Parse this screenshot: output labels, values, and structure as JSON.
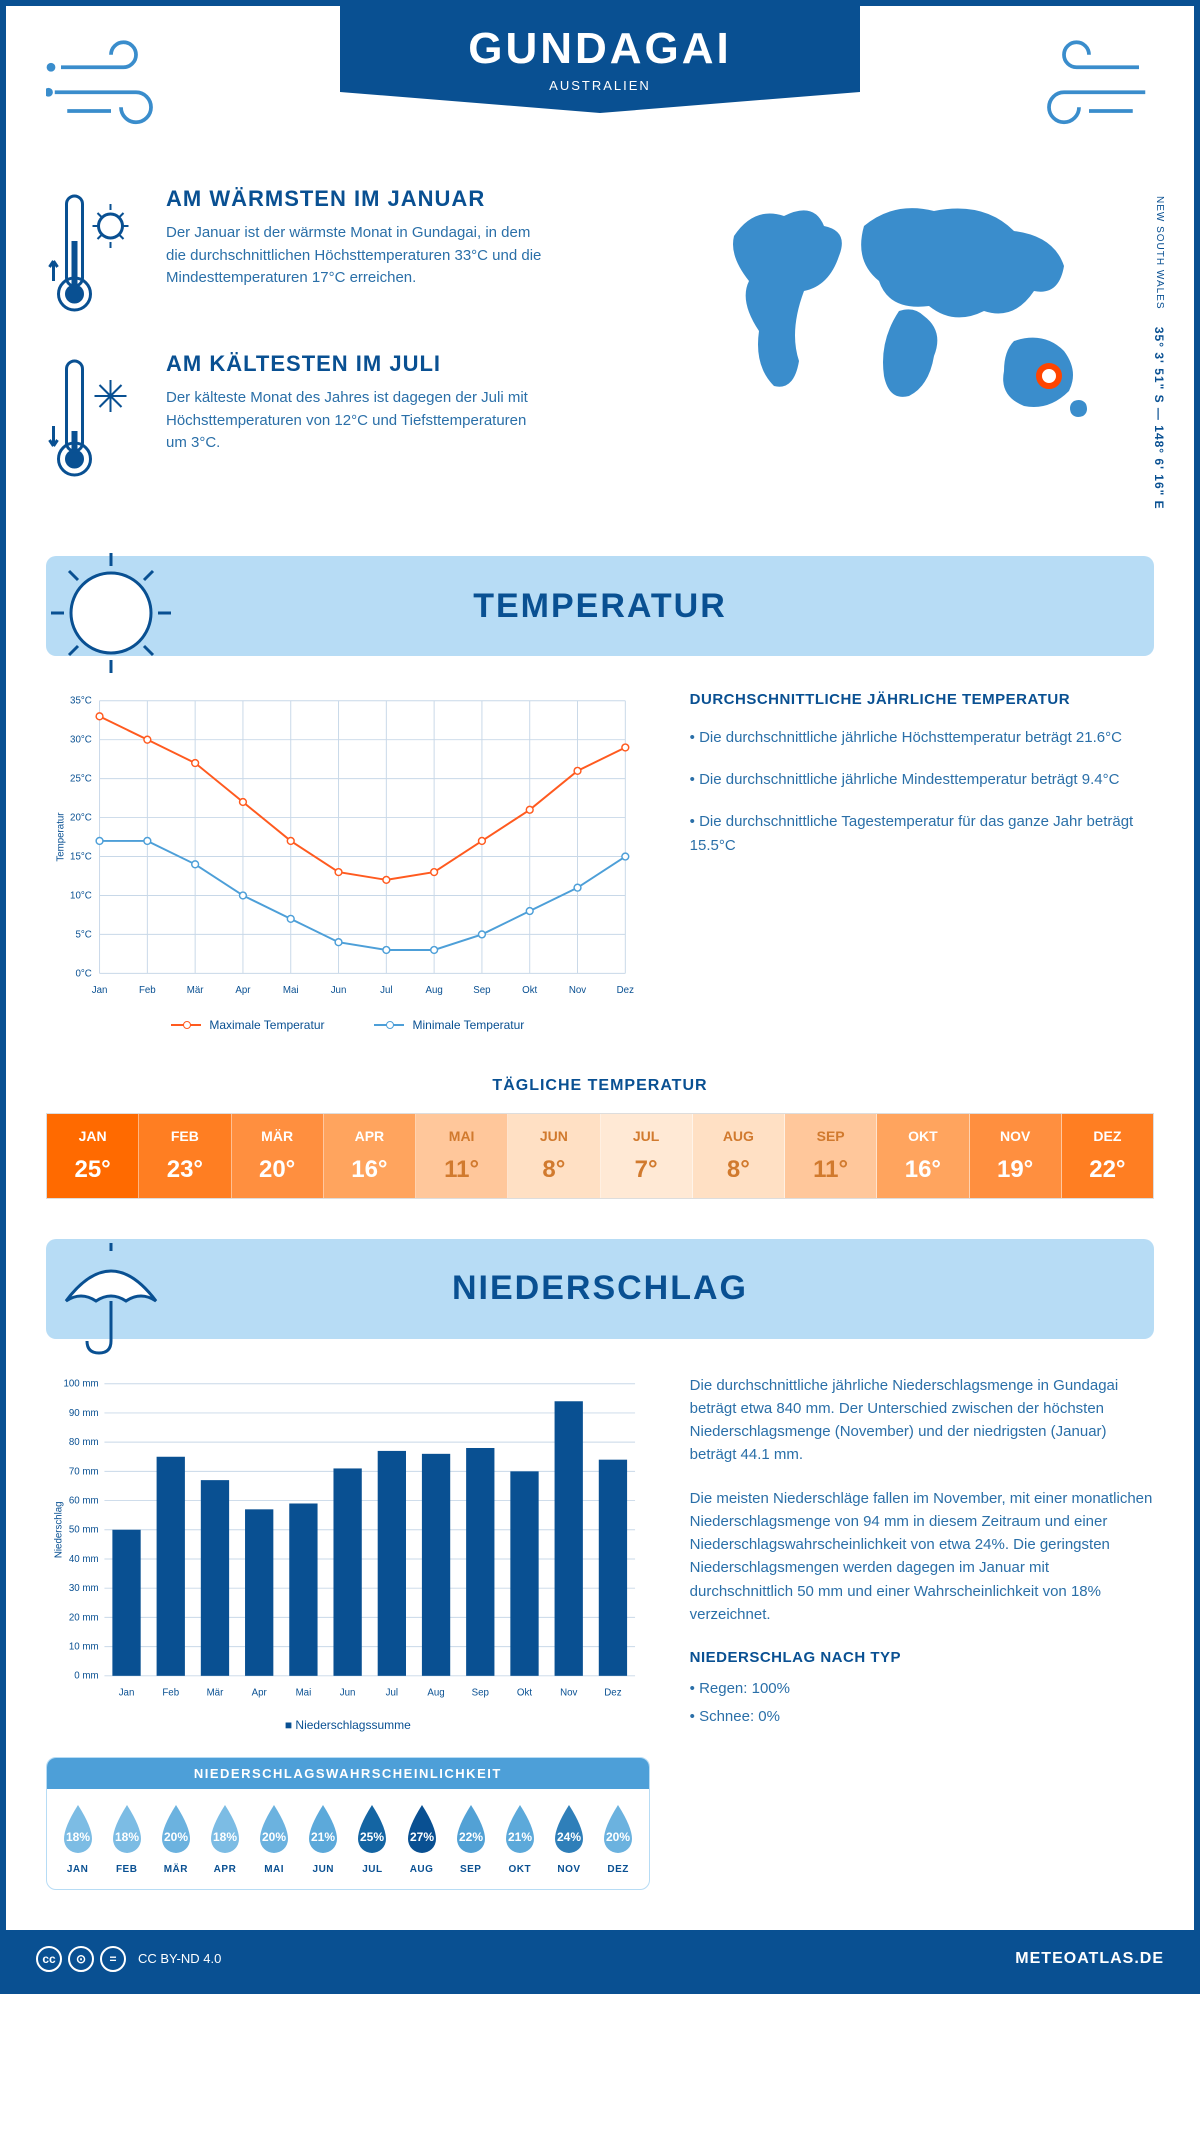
{
  "header": {
    "city": "GUNDAGAI",
    "country": "AUSTRALIEN"
  },
  "coords": {
    "lat": "35° 3' 51\" S",
    "lon": "148° 6' 16\" E",
    "region": "NEW SOUTH WALES"
  },
  "location_marker": {
    "left_pct": 83,
    "top_pct": 76
  },
  "facts": {
    "warm": {
      "title": "AM WÄRMSTEN IM JANUAR",
      "text": "Der Januar ist der wärmste Monat in Gundagai, in dem die durchschnittlichen Höchsttemperaturen 33°C und die Mindesttemperaturen 17°C erreichen."
    },
    "cold": {
      "title": "AM KÄLTESTEN IM JULI",
      "text": "Der kälteste Monat des Jahres ist dagegen der Juli mit Höchsttemperaturen von 12°C und Tiefsttemperaturen um 3°C."
    }
  },
  "sections": {
    "temp": "TEMPERATUR",
    "precip": "NIEDERSCHLAG"
  },
  "temp_chart": {
    "months": [
      "Jan",
      "Feb",
      "Mär",
      "Apr",
      "Mai",
      "Jun",
      "Jul",
      "Aug",
      "Sep",
      "Okt",
      "Nov",
      "Dez"
    ],
    "max": [
      33,
      30,
      27,
      22,
      17,
      13,
      12,
      13,
      17,
      21,
      26,
      29
    ],
    "min": [
      17,
      17,
      14,
      10,
      7,
      4,
      3,
      3,
      5,
      8,
      11,
      15
    ],
    "ylim": [
      0,
      35
    ],
    "ytick": 5,
    "max_color": "#ff5a1f",
    "min_color": "#4d9fd8",
    "ylabel": "Temperatur",
    "legend_max": "Maximale Temperatur",
    "legend_min": "Minimale Temperatur"
  },
  "temp_info": {
    "title": "DURCHSCHNITTLICHE JÄHRLICHE TEMPERATUR",
    "p1": "• Die durchschnittliche jährliche Höchsttemperatur beträgt 21.6°C",
    "p2": "• Die durchschnittliche jährliche Mindesttemperatur beträgt 9.4°C",
    "p3": "• Die durchschnittliche Tagestemperatur für das ganze Jahr beträgt 15.5°C"
  },
  "daily": {
    "title": "TÄGLICHE TEMPERATUR",
    "months": [
      "JAN",
      "FEB",
      "MÄR",
      "APR",
      "MAI",
      "JUN",
      "JUL",
      "AUG",
      "SEP",
      "OKT",
      "NOV",
      "DEZ"
    ],
    "values": [
      "25°",
      "23°",
      "20°",
      "16°",
      "11°",
      "8°",
      "7°",
      "8°",
      "11°",
      "16°",
      "19°",
      "22°"
    ],
    "colors": [
      "#ff6a00",
      "#ff7e22",
      "#ff8f3f",
      "#ffa45e",
      "#ffc79b",
      "#ffe0c4",
      "#ffe9d5",
      "#ffe0c4",
      "#ffc79b",
      "#ffa45e",
      "#ff8f3f",
      "#ff7e22"
    ],
    "label_colors": [
      "#fff",
      "#fff",
      "#fff",
      "#fff",
      "#d17a2e",
      "#d17a2e",
      "#d17a2e",
      "#d17a2e",
      "#d17a2e",
      "#fff",
      "#fff",
      "#fff"
    ]
  },
  "precip_chart": {
    "months": [
      "Jan",
      "Feb",
      "Mär",
      "Apr",
      "Mai",
      "Jun",
      "Jul",
      "Aug",
      "Sep",
      "Okt",
      "Nov",
      "Dez"
    ],
    "values": [
      50,
      75,
      67,
      57,
      59,
      71,
      77,
      76,
      78,
      70,
      94,
      74
    ],
    "ylim": [
      0,
      100
    ],
    "ytick": 10,
    "bar_color": "#095092",
    "ylabel": "Niederschlag",
    "legend": "Niederschlagssumme"
  },
  "precip_info": {
    "p1": "Die durchschnittliche jährliche Niederschlagsmenge in Gundagai beträgt etwa 840 mm. Der Unterschied zwischen der höchsten Niederschlagsmenge (November) und der niedrigsten (Januar) beträgt 44.1 mm.",
    "p2": "Die meisten Niederschläge fallen im November, mit einer monatlichen Niederschlagsmenge von 94 mm in diesem Zeitraum und einer Niederschlagswahrscheinlichkeit von etwa 24%. Die geringsten Niederschlagsmengen werden dagegen im Januar mit durchschnittlich 50 mm und einer Wahrscheinlichkeit von 18% verzeichnet.",
    "type_title": "NIEDERSCHLAG NACH TYP",
    "type_rain": "• Regen: 100%",
    "type_snow": "• Schnee: 0%"
  },
  "prob": {
    "title": "NIEDERSCHLAGSWAHRSCHEINLICHKEIT",
    "months": [
      "JAN",
      "FEB",
      "MÄR",
      "APR",
      "MAI",
      "JUN",
      "JUL",
      "AUG",
      "SEP",
      "OKT",
      "NOV",
      "DEZ"
    ],
    "values": [
      "18%",
      "18%",
      "20%",
      "18%",
      "20%",
      "21%",
      "25%",
      "27%",
      "22%",
      "21%",
      "24%",
      "20%"
    ],
    "colors": [
      "#7cbce4",
      "#7cbce4",
      "#6bb2df",
      "#7cbce4",
      "#6bb2df",
      "#5ca9da",
      "#1465a3",
      "#095092",
      "#52a1d5",
      "#5ca9da",
      "#2f7fb9",
      "#6bb2df"
    ]
  },
  "footer": {
    "license": "CC BY-ND 4.0",
    "site": "METEOATLAS.DE"
  }
}
